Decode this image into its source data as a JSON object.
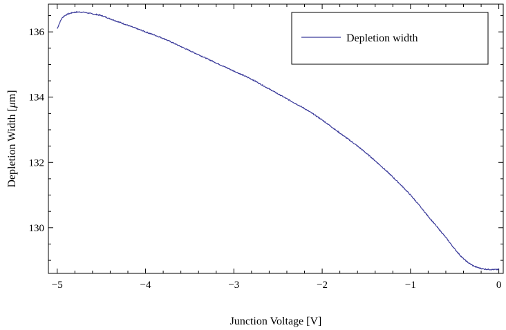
{
  "chart_data": {
    "type": "line",
    "title": "",
    "xlabel": "Junction Voltage [V]",
    "ylabel_prefix": "Depletion Width [",
    "ylabel_mu": "μ",
    "ylabel_suffix": "m]",
    "xlim": [
      -5.1,
      0.05
    ],
    "ylim": [
      128.6,
      136.85
    ],
    "xticks": [
      {
        "value": -5,
        "label": "−5"
      },
      {
        "value": -4,
        "label": "−4"
      },
      {
        "value": -3,
        "label": "−3"
      },
      {
        "value": -2,
        "label": "−2"
      },
      {
        "value": -1,
        "label": "−1"
      },
      {
        "value": 0,
        "label": "0"
      }
    ],
    "yticks": [
      {
        "value": 130,
        "label": "130"
      },
      {
        "value": 132,
        "label": "132"
      },
      {
        "value": 134,
        "label": "134"
      },
      {
        "value": 136,
        "label": "136"
      }
    ],
    "grid": false,
    "legend_position": "top-right",
    "series": [
      {
        "name": "Depletion width",
        "color": "#3a3a9a",
        "x": [
          -5.0,
          -4.95,
          -4.9,
          -4.8,
          -4.7,
          -4.6,
          -4.5,
          -4.4,
          -4.2,
          -4.0,
          -3.8,
          -3.6,
          -3.4,
          -3.2,
          -3.0,
          -2.8,
          -2.6,
          -2.4,
          -2.2,
          -2.0,
          -1.8,
          -1.6,
          -1.4,
          -1.2,
          -1.0,
          -0.8,
          -0.6,
          -0.5,
          -0.4,
          -0.3,
          -0.2,
          -0.1,
          0.0
        ],
        "y": [
          136.1,
          136.4,
          136.52,
          136.6,
          136.6,
          136.55,
          136.5,
          136.4,
          136.2,
          136.0,
          135.8,
          135.55,
          135.3,
          135.05,
          134.8,
          134.55,
          134.25,
          133.95,
          133.65,
          133.3,
          132.9,
          132.5,
          132.05,
          131.55,
          131.0,
          130.35,
          129.7,
          129.35,
          129.05,
          128.85,
          128.75,
          128.72,
          128.72
        ]
      }
    ]
  }
}
